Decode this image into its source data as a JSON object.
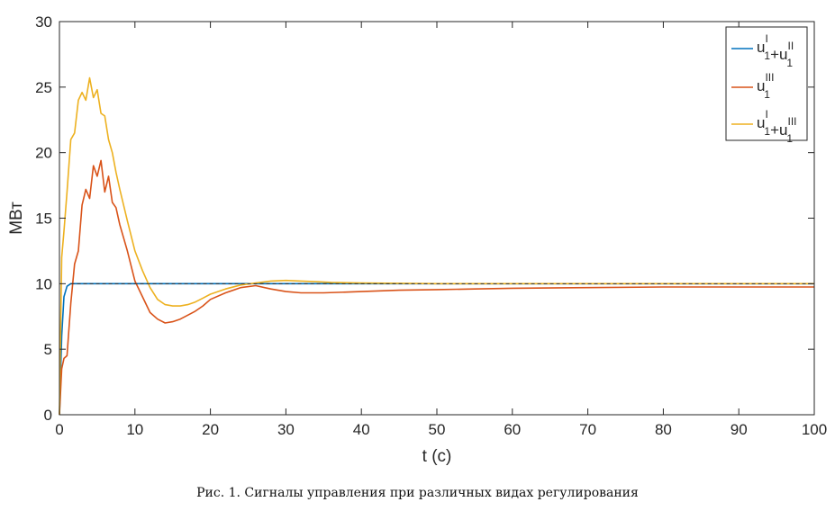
{
  "caption": "Рис. 1. Сигналы управления при различных видах регулирования",
  "chart_data": {
    "type": "line",
    "xlabel": "t (c)",
    "ylabel": "МВт",
    "xlim": [
      0,
      100
    ],
    "ylim": [
      0,
      30
    ],
    "xticks": [
      0,
      10,
      20,
      30,
      40,
      50,
      60,
      70,
      80,
      90,
      100
    ],
    "yticks": [
      0,
      5,
      10,
      15,
      20,
      25,
      30
    ],
    "grid": false,
    "legend_position": "top-right",
    "series": [
      {
        "name": "u1^I+u1^II",
        "legend": {
          "base1": "u",
          "sub1": "1",
          "sup1": "I",
          "plus": "+",
          "base2": "u",
          "sub2": "1",
          "sup2": "II"
        },
        "color": "#0072BD",
        "x": [
          0,
          0.3,
          0.6,
          1.0,
          1.5,
          2,
          3,
          5,
          100
        ],
        "y": [
          0,
          6.0,
          9.0,
          9.8,
          10.0,
          10.0,
          10.0,
          10.0,
          10.0
        ]
      },
      {
        "name": "u1^III",
        "legend": {
          "base1": "u",
          "sub1": "1",
          "sup1": "III"
        },
        "color": "#D95319",
        "x": [
          0,
          0.3,
          0.6,
          1.0,
          1.5,
          2.0,
          2.5,
          3.0,
          3.5,
          4.0,
          4.5,
          5.0,
          5.5,
          6.0,
          6.5,
          7.0,
          7.5,
          8.0,
          9.0,
          10.0,
          11.0,
          12.0,
          13.0,
          14.0,
          15.0,
          16.0,
          17.0,
          18.0,
          19.0,
          20.0,
          22.0,
          24.0,
          26.0,
          28.0,
          30.0,
          32.0,
          35.0,
          40.0,
          45.0,
          50.0,
          55.0,
          60.0,
          70.0,
          80.0,
          90.0,
          100.0
        ],
        "y": [
          0,
          3.5,
          4.3,
          4.5,
          8.5,
          11.5,
          12.5,
          16.0,
          17.2,
          16.5,
          19.0,
          18.2,
          19.4,
          17.0,
          18.2,
          16.2,
          15.8,
          14.5,
          12.5,
          10.2,
          9.0,
          7.8,
          7.3,
          7.0,
          7.1,
          7.3,
          7.6,
          7.9,
          8.3,
          8.8,
          9.3,
          9.7,
          9.85,
          9.6,
          9.4,
          9.3,
          9.3,
          9.4,
          9.5,
          9.55,
          9.6,
          9.65,
          9.7,
          9.75,
          9.75,
          9.75
        ]
      },
      {
        "name": "u1^I+u1^III",
        "legend": {
          "base1": "u",
          "sub1": "1",
          "sup1": "I",
          "plus": "+",
          "base2": "u",
          "sub2": "1",
          "sup2": "III"
        },
        "color": "#EDB120",
        "x": [
          0,
          0.3,
          0.6,
          1.0,
          1.5,
          2.0,
          2.5,
          3.0,
          3.5,
          4.0,
          4.5,
          5.0,
          5.5,
          6.0,
          6.5,
          7.0,
          7.5,
          8.0,
          9.0,
          10.0,
          11.0,
          12.0,
          13.0,
          14.0,
          15.0,
          16.0,
          17.0,
          18.0,
          19.0,
          20.0,
          22.0,
          24.0,
          26.0,
          28.0,
          30.0,
          32.0,
          34.0,
          36.0,
          40.0,
          50.0,
          60.0,
          70.0,
          80.0,
          90.0,
          100.0
        ],
        "y": [
          0,
          12.0,
          14.0,
          17.0,
          21.0,
          21.5,
          24.0,
          24.6,
          24.0,
          25.7,
          24.2,
          24.8,
          23.0,
          22.8,
          21.0,
          20.0,
          18.5,
          17.2,
          14.8,
          12.5,
          11.0,
          9.7,
          8.8,
          8.4,
          8.3,
          8.3,
          8.4,
          8.6,
          8.9,
          9.2,
          9.6,
          9.9,
          10.05,
          10.2,
          10.25,
          10.2,
          10.15,
          10.1,
          10.05,
          10.0,
          10.0,
          10.0,
          10.0,
          10.0,
          10.0
        ]
      }
    ]
  }
}
